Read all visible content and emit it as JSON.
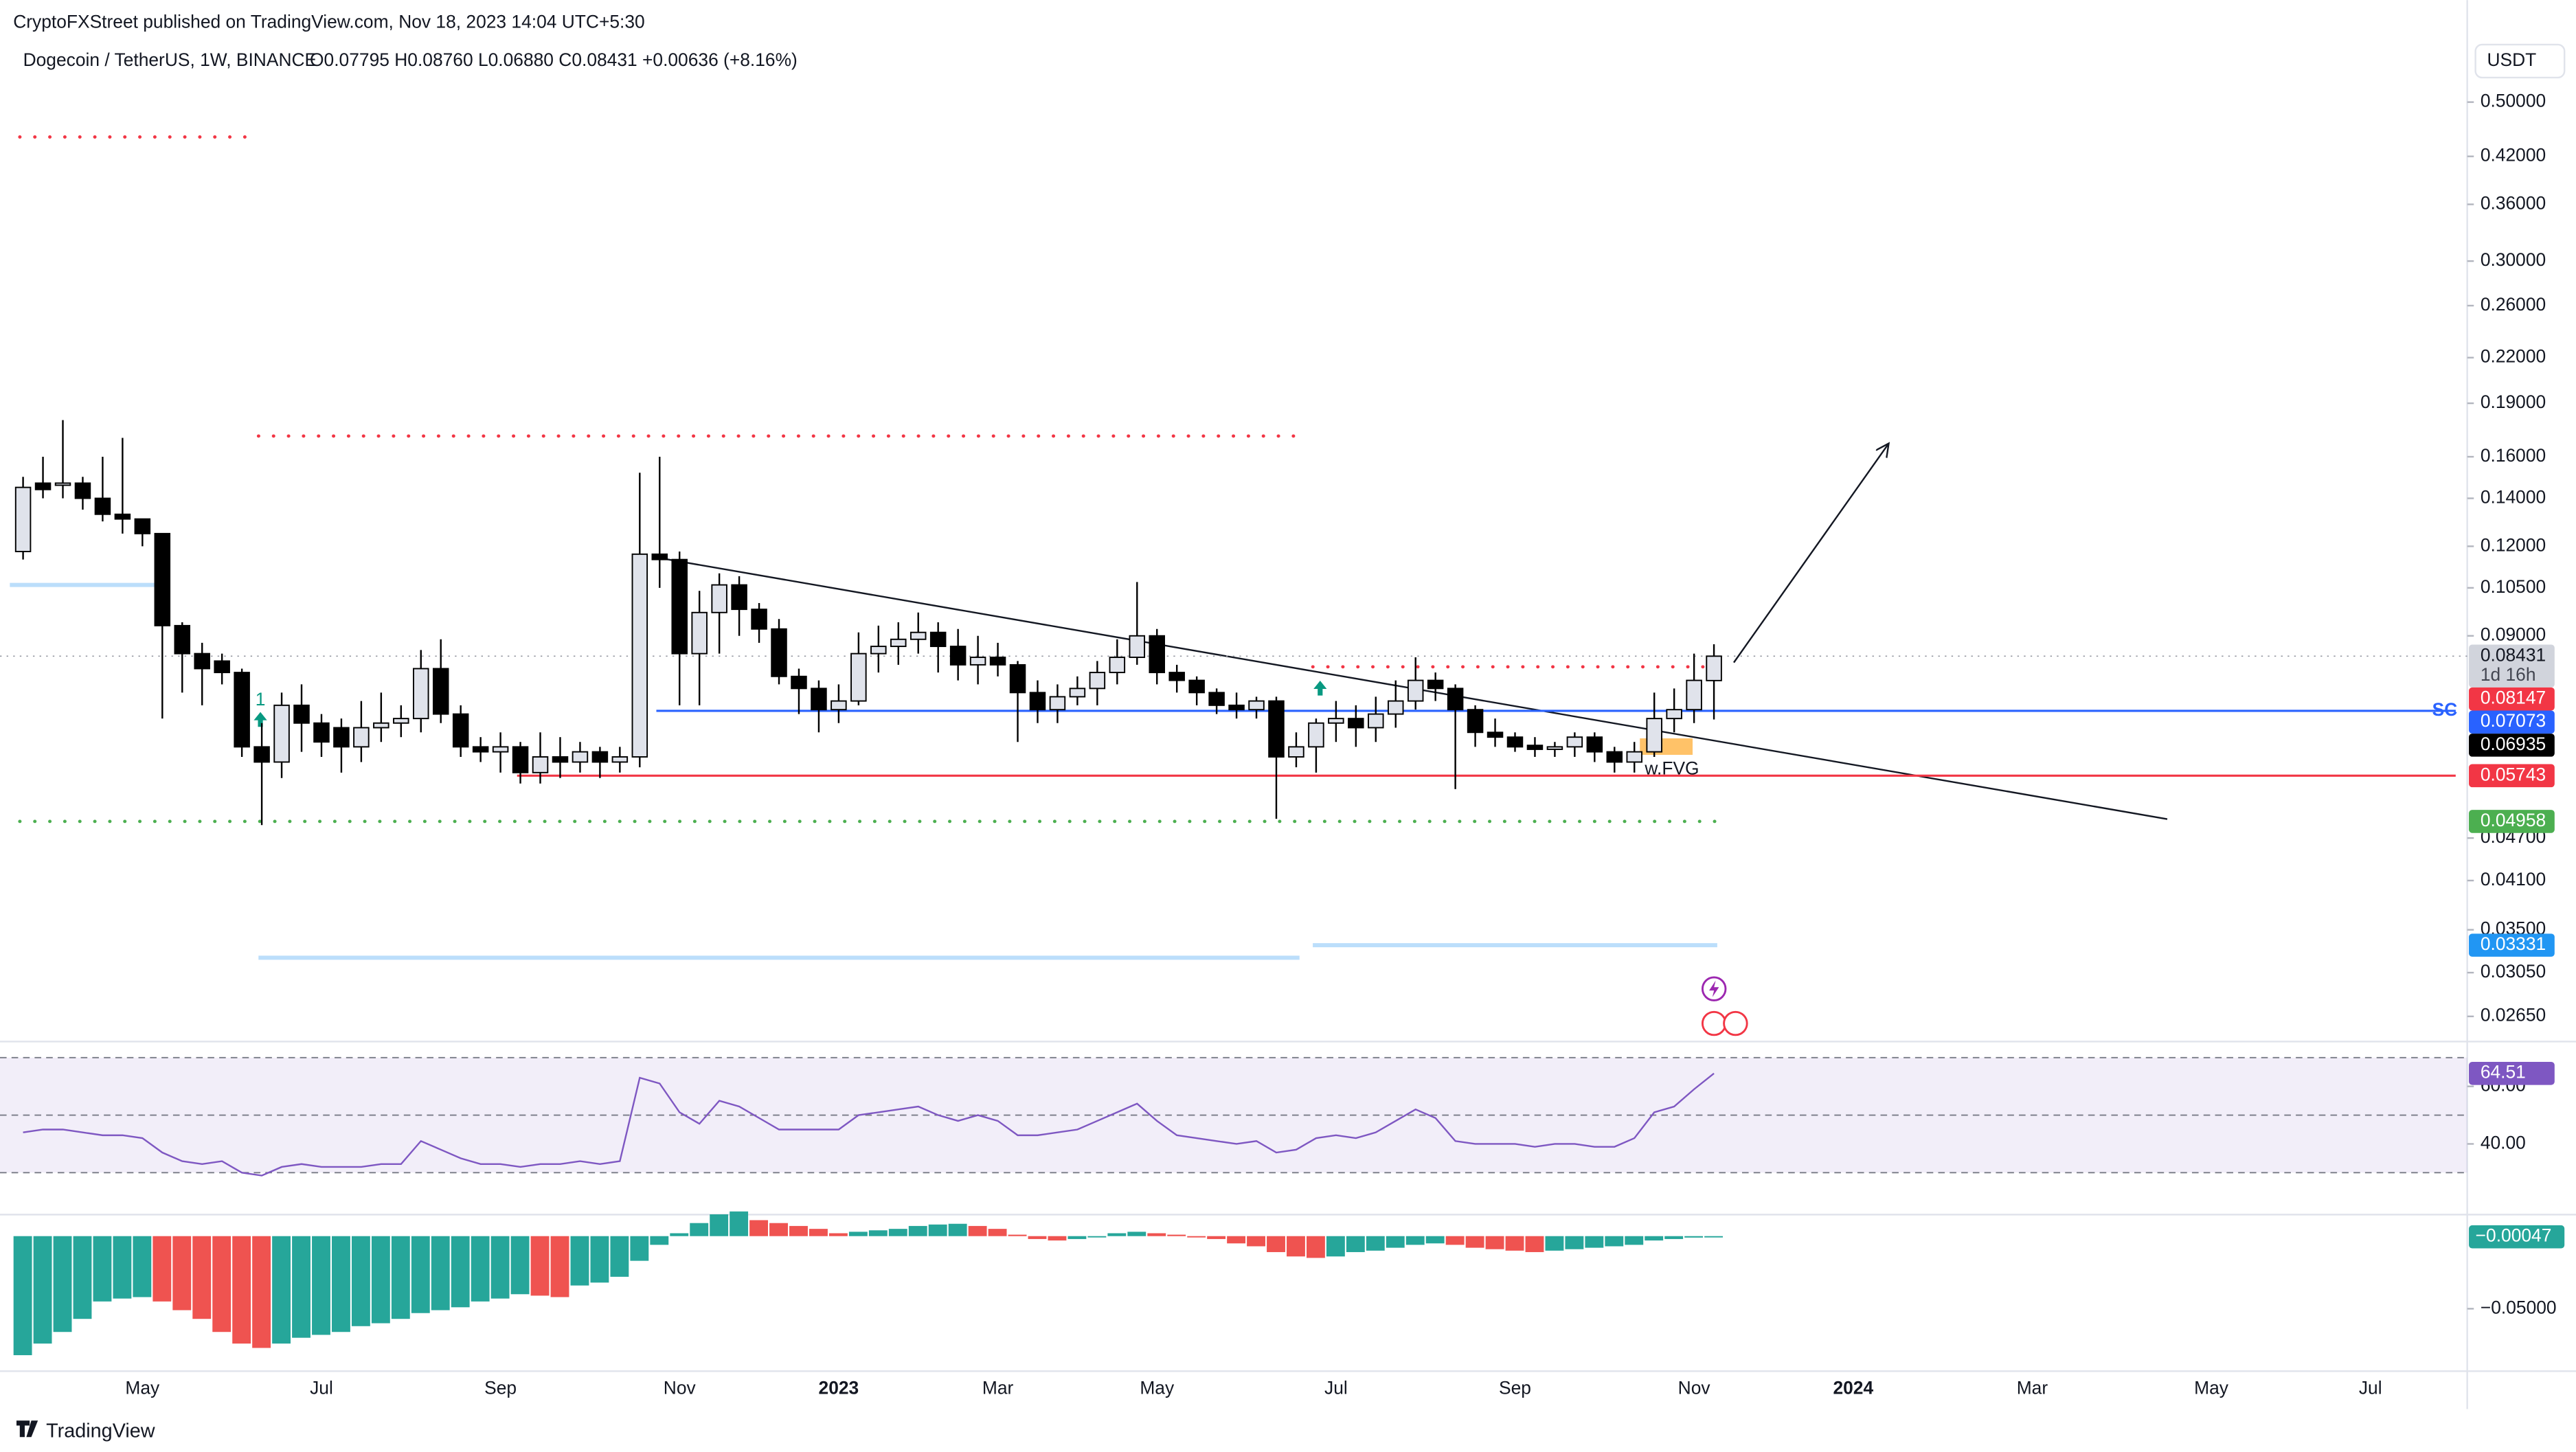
{
  "header": "CryptoFXStreet published on TradingView.com, Nov 18, 2023 14:04 UTC+5:30",
  "footer": "TradingView",
  "chart_data": [
    {
      "type": "candlestick",
      "title": "Dogecoin / TetherUS, 1W, BINANCE",
      "ohlc_legend": "O0.07795 H0.08760 L0.06880 C0.08431 +0.00636 (+8.16%)",
      "currency": "USDT",
      "countdown": "1d 16h",
      "log": true,
      "up_color": "#e0e3eb",
      "down_color": "#000000",
      "wick_color": "#000000",
      "categories": [
        null,
        null,
        null,
        null,
        null,
        null,
        "May",
        null,
        null,
        null,
        null,
        null,
        null,
        null,
        null,
        "Jul",
        null,
        null,
        null,
        null,
        null,
        null,
        null,
        null,
        "Sep",
        null,
        null,
        null,
        null,
        null,
        null,
        null,
        null,
        "Nov",
        null,
        null,
        null,
        null,
        null,
        null,
        null,
        "2023",
        null,
        null,
        null,
        null,
        null,
        null,
        null,
        "Mar",
        null,
        null,
        null,
        null,
        null,
        null,
        null,
        "May",
        null,
        null,
        null,
        null,
        null,
        null,
        null,
        null,
        "Jul",
        null,
        null,
        null,
        null,
        null,
        null,
        null,
        null,
        "Sep",
        null,
        null,
        null,
        null,
        null,
        null,
        null,
        null,
        "Nov",
        null,
        null,
        null,
        null,
        null,
        null,
        null,
        "2024",
        null,
        null,
        null,
        null,
        null,
        null,
        null,
        null,
        "Mar",
        null,
        null,
        null,
        null,
        null,
        null,
        null,
        null,
        "May",
        null,
        null,
        null,
        null,
        null,
        null,
        null,
        "Jul",
        null,
        null,
        null
      ],
      "open": [
        0.118,
        0.147,
        0.146,
        0.147,
        0.14,
        0.133,
        0.131,
        0.125,
        0.093,
        0.085,
        0.083,
        0.08,
        0.063,
        0.06,
        0.072,
        0.068,
        0.067,
        0.063,
        0.067,
        0.068,
        0.069,
        0.081,
        0.07,
        0.063,
        0.062,
        0.063,
        0.058,
        0.061,
        0.06,
        0.062,
        0.06,
        0.061,
        0.117,
        0.115,
        0.085,
        0.097,
        0.106,
        0.098,
        0.092,
        0.079,
        0.076,
        0.071,
        0.073,
        0.085,
        0.087,
        0.089,
        0.091,
        0.087,
        0.082,
        0.084,
        0.082,
        0.075,
        0.071,
        0.074,
        0.076,
        0.08,
        0.084,
        0.09,
        0.08,
        0.078,
        0.075,
        0.072,
        0.071,
        0.073,
        0.061,
        0.063,
        0.068,
        0.069,
        0.067,
        0.07,
        0.073,
        0.078,
        0.076,
        0.071,
        0.066,
        0.065,
        0.0633,
        0.0625,
        0.063,
        0.065,
        0.062,
        0.06,
        0.062,
        0.069,
        0.071,
        0.07795,
        null,
        null,
        null,
        null,
        null,
        null,
        null,
        null,
        null,
        null,
        null,
        null,
        null,
        null,
        null,
        null,
        null,
        null,
        null,
        null,
        null,
        null,
        null,
        null,
        null,
        null,
        null,
        null,
        null,
        null,
        null,
        null,
        null,
        null,
        null,
        null
      ],
      "high": [
        0.15,
        0.16,
        0.18,
        0.15,
        0.16,
        0.17,
        0.13,
        0.125,
        0.094,
        0.088,
        0.085,
        0.081,
        0.068,
        0.075,
        0.077,
        0.07,
        0.069,
        0.073,
        0.075,
        0.072,
        0.086,
        0.089,
        0.072,
        0.065,
        0.066,
        0.064,
        0.066,
        0.065,
        0.064,
        0.063,
        0.063,
        0.152,
        0.16,
        0.118,
        0.104,
        0.11,
        0.109,
        0.1,
        0.095,
        0.081,
        0.078,
        0.077,
        0.091,
        0.093,
        0.094,
        0.097,
        0.094,
        0.092,
        0.09,
        0.088,
        0.083,
        0.078,
        0.077,
        0.079,
        0.083,
        0.089,
        0.107,
        0.092,
        0.082,
        0.079,
        0.076,
        0.075,
        0.074,
        0.074,
        0.066,
        0.069,
        0.073,
        0.072,
        0.074,
        0.078,
        0.084,
        0.08,
        0.077,
        0.072,
        0.069,
        0.066,
        0.065,
        0.064,
        0.066,
        0.066,
        0.063,
        0.064,
        0.075,
        0.076,
        0.085,
        0.0876,
        null,
        null,
        null,
        null,
        null,
        null,
        null,
        null,
        null,
        null,
        null,
        null,
        null,
        null,
        null,
        null,
        null,
        null,
        null,
        null,
        null,
        null,
        null,
        null,
        null,
        null,
        null,
        null,
        null,
        null,
        null,
        null,
        null,
        null,
        null,
        null
      ],
      "low": [
        0.115,
        0.14,
        0.14,
        0.135,
        0.13,
        0.125,
        0.12,
        0.069,
        0.075,
        0.072,
        0.077,
        0.061,
        0.049,
        0.057,
        0.062,
        0.061,
        0.058,
        0.06,
        0.064,
        0.065,
        0.066,
        0.068,
        0.061,
        0.06,
        0.058,
        0.056,
        0.056,
        0.057,
        0.058,
        0.057,
        0.058,
        0.059,
        0.105,
        0.072,
        0.072,
        0.085,
        0.09,
        0.088,
        0.077,
        0.07,
        0.066,
        0.068,
        0.072,
        0.08,
        0.082,
        0.085,
        0.08,
        0.078,
        0.077,
        0.079,
        0.064,
        0.068,
        0.068,
        0.072,
        0.072,
        0.077,
        0.082,
        0.077,
        0.075,
        0.072,
        0.07,
        0.069,
        0.069,
        0.05,
        0.059,
        0.058,
        0.064,
        0.063,
        0.064,
        0.067,
        0.071,
        0.073,
        0.055,
        0.063,
        0.063,
        0.062,
        0.061,
        0.061,
        0.061,
        0.06,
        0.058,
        0.058,
        0.061,
        0.066,
        0.068,
        0.0688,
        null,
        null,
        null,
        null,
        null,
        null,
        null,
        null,
        null,
        null,
        null,
        null,
        null,
        null,
        null,
        null,
        null,
        null,
        null,
        null,
        null,
        null,
        null,
        null,
        null,
        null,
        null,
        null,
        null,
        null,
        null,
        null,
        null,
        null,
        null,
        null
      ],
      "close": [
        0.145,
        0.144,
        0.147,
        0.14,
        0.133,
        0.131,
        0.125,
        0.093,
        0.085,
        0.081,
        0.08,
        0.063,
        0.06,
        0.072,
        0.068,
        0.064,
        0.063,
        0.067,
        0.068,
        0.069,
        0.081,
        0.07,
        0.063,
        0.062,
        0.063,
        0.058,
        0.061,
        0.06,
        0.062,
        0.06,
        0.061,
        0.117,
        0.115,
        0.085,
        0.097,
        0.106,
        0.098,
        0.092,
        0.079,
        0.076,
        0.071,
        0.073,
        0.085,
        0.087,
        0.089,
        0.091,
        0.087,
        0.082,
        0.084,
        0.082,
        0.075,
        0.071,
        0.074,
        0.076,
        0.08,
        0.084,
        0.09,
        0.08,
        0.078,
        0.075,
        0.072,
        0.071,
        0.073,
        0.061,
        0.063,
        0.068,
        0.069,
        0.067,
        0.07,
        0.073,
        0.078,
        0.076,
        0.071,
        0.066,
        0.065,
        0.063,
        0.0625,
        0.063,
        0.065,
        0.062,
        0.06,
        0.062,
        0.069,
        0.071,
        0.078,
        0.08431,
        null,
        null,
        null,
        null,
        null,
        null,
        null,
        null,
        null,
        null,
        null,
        null,
        null,
        null,
        null,
        null,
        null,
        null,
        null,
        null,
        null,
        null,
        null,
        null,
        null,
        null,
        null,
        null,
        null,
        null,
        null,
        null,
        null,
        null,
        null,
        null
      ],
      "ylim": [
        0.0247,
        0.592
      ],
      "yticks": [
        {
          "value": 0.5,
          "label": "0.50000"
        },
        {
          "value": 0.42,
          "label": "0.42000"
        },
        {
          "value": 0.36,
          "label": "0.36000"
        },
        {
          "value": 0.3,
          "label": "0.30000"
        },
        {
          "value": 0.26,
          "label": "0.26000"
        },
        {
          "value": 0.22,
          "label": "0.22000"
        },
        {
          "value": 0.19,
          "label": "0.19000"
        },
        {
          "value": 0.16,
          "label": "0.16000"
        },
        {
          "value": 0.14,
          "label": "0.14000"
        },
        {
          "value": 0.12,
          "label": "0.12000"
        },
        {
          "value": 0.105,
          "label": "0.10500"
        },
        {
          "value": 0.09,
          "label": "0.09000"
        },
        {
          "value": 0.047,
          "label": "0.04700"
        },
        {
          "value": 0.041,
          "label": "0.04100"
        },
        {
          "value": 0.035,
          "label": "0.03500"
        },
        {
          "value": 0.0305,
          "label": "0.03050"
        },
        {
          "value": 0.0265,
          "label": "0.02650"
        }
      ],
      "levels": [
        {
          "value": 0.447,
          "color": "#f23645",
          "style": "dotted",
          "badge": false
        },
        {
          "value": 0.171,
          "color": "#f23645",
          "style": "dotted",
          "badge": false
        },
        {
          "value": 0.106,
          "color": "#bbdefb",
          "style": "solid",
          "badge": false
        },
        {
          "value": 0.08147,
          "color": "#f23645",
          "style": "dotted",
          "badge": true
        },
        {
          "value": 0.07073,
          "color": "#2962ff",
          "style": "solid",
          "badge": true,
          "label": "SC"
        },
        {
          "value": 0.06935,
          "color": "#000000",
          "style": "none",
          "badge": true
        },
        {
          "value": 0.05743,
          "color": "#f23645",
          "style": "solid",
          "badge": true
        },
        {
          "value": 0.04958,
          "color": "#4caf50",
          "style": "dotted",
          "badge": true
        },
        {
          "value": 0.03331,
          "color": "#bbdefb",
          "badge_color": "#2196f3",
          "style": "solid",
          "badge": true
        },
        {
          "value": 0.032,
          "color": "#bbdefb",
          "style": "solid",
          "badge": false
        }
      ],
      "annotations": [
        "w.FVG",
        "1"
      ]
    },
    {
      "type": "line",
      "color": "#7e57c2",
      "values": [
        44,
        45,
        45,
        44,
        43,
        43,
        42,
        37,
        34,
        33,
        34,
        30,
        29,
        32,
        33,
        32,
        32,
        32,
        33,
        33,
        41,
        38,
        35,
        33,
        33,
        32,
        33,
        33,
        34,
        33,
        34,
        63,
        61,
        51,
        47,
        55,
        53,
        49,
        45,
        45,
        45,
        45,
        50,
        51,
        52,
        53,
        50,
        48,
        50,
        48,
        43,
        43,
        44,
        45,
        48,
        51,
        54,
        48,
        43,
        42,
        41,
        40,
        41,
        37,
        38,
        42,
        43,
        42,
        44,
        48,
        52,
        49,
        41,
        40,
        40,
        40,
        39,
        40,
        40,
        39,
        39,
        42,
        51,
        53,
        59,
        64.51,
        null,
        null,
        null,
        null,
        null,
        null,
        null,
        null,
        null,
        null,
        null,
        null,
        null,
        null,
        null,
        null,
        null,
        null,
        null,
        null,
        null,
        null,
        null,
        null,
        null,
        null,
        null,
        null,
        null,
        null,
        null,
        null,
        null,
        null,
        null,
        null
      ],
      "ylim": [
        16,
        75
      ],
      "yticks": [
        {
          "value": 60,
          "label": "60.00"
        },
        {
          "value": 40,
          "label": "40.00"
        }
      ],
      "bands": [
        70,
        50,
        30
      ]
    },
    {
      "type": "bar",
      "up_color": "#26a69a",
      "down_color": "#ef5350",
      "values": [
        -0.082,
        -0.074,
        -0.066,
        -0.057,
        -0.045,
        -0.043,
        -0.042,
        -0.045,
        -0.051,
        -0.057,
        -0.066,
        -0.074,
        -0.077,
        -0.074,
        -0.07,
        -0.068,
        -0.066,
        -0.062,
        -0.06,
        -0.057,
        -0.053,
        -0.051,
        -0.049,
        -0.045,
        -0.043,
        -0.04,
        -0.041,
        -0.042,
        -0.034,
        -0.032,
        -0.028,
        -0.017,
        -0.006,
        0.002,
        0.009,
        0.015,
        0.017,
        0.011,
        0.009,
        0.007,
        0.005,
        0.002,
        0.003,
        0.004,
        0.005,
        0.007,
        0.008,
        0.0085,
        0.007,
        0.005,
        0.001,
        -0.002,
        -0.003,
        -0.002,
        0,
        0.002,
        0.003,
        0.002,
        0.001,
        0,
        -0.002,
        -0.005,
        -0.007,
        -0.011,
        -0.014,
        -0.015,
        -0.014,
        -0.011,
        -0.01,
        -0.008,
        -0.006,
        -0.005,
        -0.006,
        -0.008,
        -0.009,
        -0.01,
        -0.011,
        -0.01,
        -0.009,
        -0.008,
        -0.007,
        -0.006,
        -0.003,
        -0.002,
        -0.001,
        -0.00047,
        null,
        null,
        null,
        null,
        null,
        null,
        null,
        null,
        null,
        null,
        null,
        null,
        null,
        null,
        null,
        null,
        null,
        null,
        null,
        null,
        null,
        null,
        null,
        null,
        null,
        null,
        null,
        null,
        null,
        null,
        null,
        null,
        null,
        null,
        null,
        null
      ],
      "value_labels": [
        null,
        null,
        null,
        null,
        null,
        null,
        null,
        null,
        null,
        null,
        null,
        null,
        null,
        null,
        null,
        null,
        null,
        null,
        null,
        null,
        null,
        null,
        null,
        null,
        null,
        null,
        null,
        null,
        null,
        null,
        null,
        null,
        null,
        null,
        null,
        null,
        null,
        null,
        null,
        null,
        null,
        null,
        null,
        null,
        null,
        null,
        null,
        null,
        null,
        null,
        null,
        null,
        null,
        null,
        null,
        null,
        null,
        null,
        null,
        null,
        null,
        null,
        null,
        null,
        null,
        null,
        null,
        null,
        null,
        null,
        null,
        null,
        null,
        null,
        null,
        null,
        null,
        null,
        null,
        null,
        null,
        null,
        null,
        null,
        null,
        "−0.00047",
        null,
        null,
        null,
        null,
        null,
        null,
        null,
        null,
        null,
        null,
        null,
        null,
        null,
        null,
        null,
        null,
        null,
        null,
        null,
        null,
        null,
        null,
        null,
        null,
        null,
        null,
        null,
        null,
        null,
        null,
        null,
        null,
        null,
        null,
        null,
        null
      ],
      "ylim": [
        -0.093,
        0.0205
      ],
      "yticks": [
        {
          "value": -0.05,
          "label": "−0.05000"
        }
      ]
    }
  ]
}
